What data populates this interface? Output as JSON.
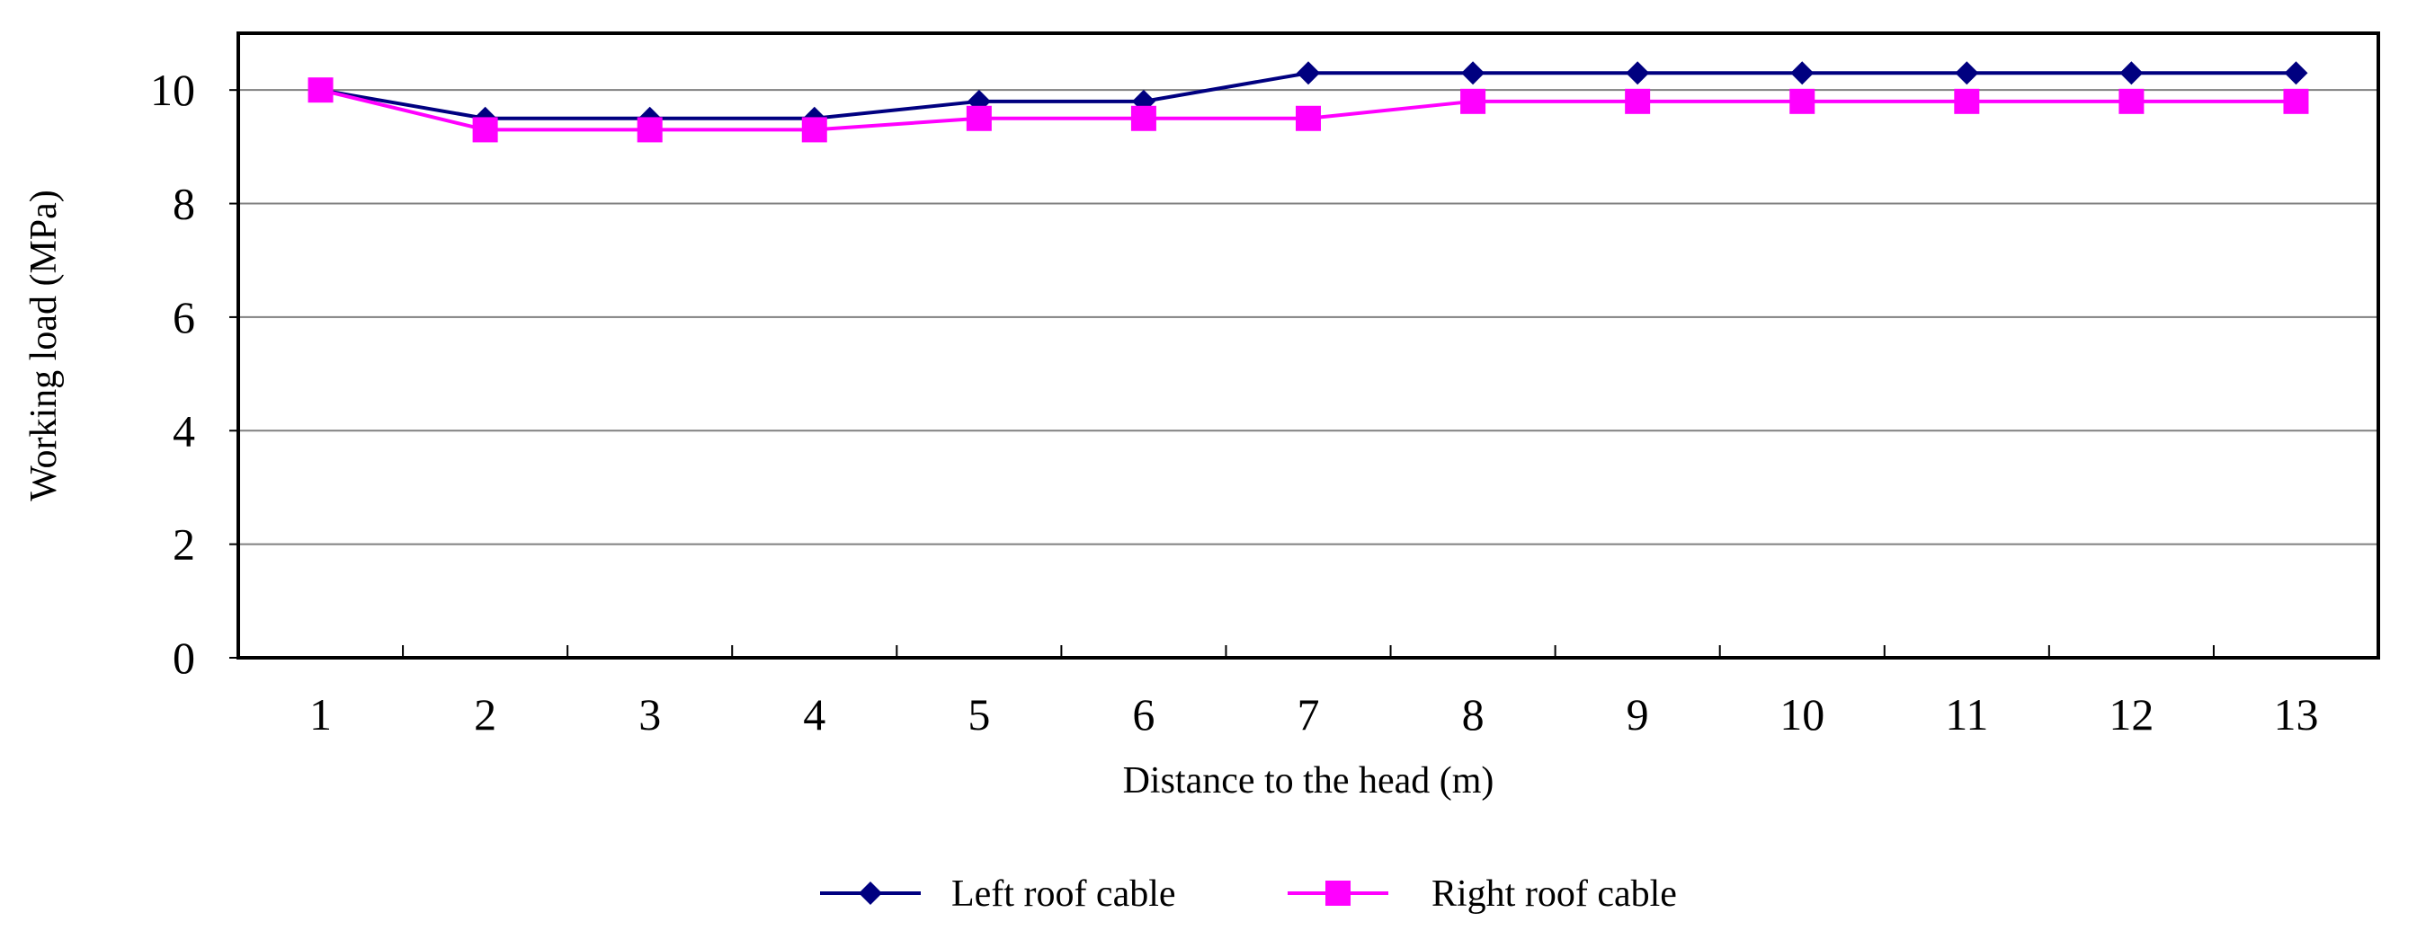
{
  "chart_data": {
    "type": "line",
    "title": "",
    "xlabel": "Distance to the head (m)",
    "ylabel": "Working load (MPa)",
    "categories": [
      "1",
      "2",
      "3",
      "4",
      "5",
      "6",
      "7",
      "8",
      "9",
      "10",
      "11",
      "12",
      "13"
    ],
    "ylim": [
      0,
      11
    ],
    "yticks": [
      0,
      2,
      4,
      6,
      8,
      10
    ],
    "grid": true,
    "legend_position": "bottom",
    "series": [
      {
        "name": "Left roof cable",
        "color": "#000080",
        "marker": "diamond",
        "values": [
          10.0,
          9.5,
          9.5,
          9.5,
          9.8,
          9.8,
          10.3,
          10.3,
          10.3,
          10.3,
          10.3,
          10.3,
          10.3
        ]
      },
      {
        "name": "Right roof cable",
        "color": "#FF00FF",
        "marker": "square",
        "values": [
          10.0,
          9.3,
          9.3,
          9.3,
          9.5,
          9.5,
          9.5,
          9.8,
          9.8,
          9.8,
          9.8,
          9.8,
          9.8
        ]
      }
    ]
  }
}
